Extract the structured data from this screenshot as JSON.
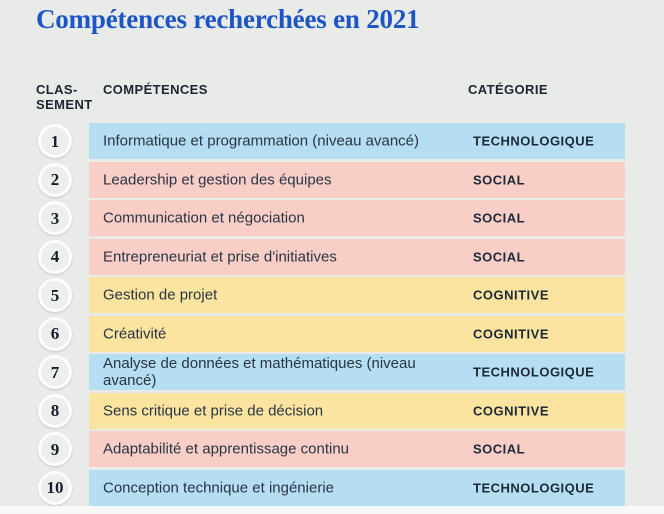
{
  "title": "Compétences recherchées en 2021",
  "colors": {
    "page_background": "#e9ebe8",
    "title_blue": "#1d55c6",
    "text_dark": "#1e2937"
  },
  "chart_data": {
    "type": "table",
    "title": "Compétences recherchées en 2021",
    "columns": [
      "CLAS-\nSEMENT",
      "COMPÉTENCES",
      "CATÉGORIE"
    ],
    "category_colors": {
      "TECHNOLOGIQUE": "#b5def2",
      "SOCIAL": "#f8cec7",
      "COGNITIVE": "#fbe49f"
    },
    "rows": [
      {
        "rank": "1",
        "competence": "Informatique et programmation (niveau avancé)",
        "category": "TECHNOLOGIQUE"
      },
      {
        "rank": "2",
        "competence": "Leadership et gestion des équipes",
        "category": "SOCIAL"
      },
      {
        "rank": "3",
        "competence": "Communication et négociation",
        "category": "SOCIAL"
      },
      {
        "rank": "4",
        "competence": "Entrepreneuriat et prise d'initiatives",
        "category": "SOCIAL"
      },
      {
        "rank": "5",
        "competence": "Gestion de projet",
        "category": "COGNITIVE"
      },
      {
        "rank": "6",
        "competence": "Créativité",
        "category": "COGNITIVE"
      },
      {
        "rank": "7",
        "competence": "Analyse de données et mathématiques (niveau avancé)",
        "category": "TECHNOLOGIQUE"
      },
      {
        "rank": "8",
        "competence": "Sens critique et prise de décision",
        "category": "COGNITIVE"
      },
      {
        "rank": "9",
        "competence": "Adaptabilité et apprentissage continu",
        "category": "SOCIAL"
      },
      {
        "rank": "10",
        "competence": "Conception technique et ingénierie",
        "category": "TECHNOLOGIQUE"
      }
    ]
  }
}
